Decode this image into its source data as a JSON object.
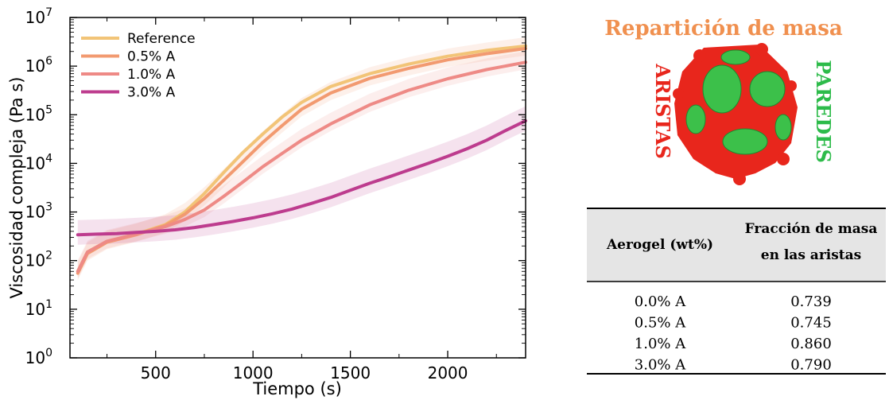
{
  "chart_data": {
    "type": "line",
    "title": "",
    "xlabel": "Tiempo (s)",
    "ylabel": "Viscosidad compleja (Pa s)",
    "xlim": [
      60,
      2400
    ],
    "ylim_log10": [
      0,
      7
    ],
    "y_scale": "log",
    "x_ticks": [
      500,
      1000,
      1500,
      2000
    ],
    "x_tick_labels": [
      "500",
      "1000",
      "1500",
      "2000"
    ],
    "y_tick_exponents": [
      0,
      1,
      2,
      3,
      4,
      5,
      6,
      7
    ],
    "y_tick_base": "10",
    "legend_position": "top-left",
    "series": [
      {
        "name": "Reference",
        "color": "#f2c477",
        "x": [
          100,
          150,
          250,
          400,
          550,
          650,
          750,
          850,
          950,
          1050,
          1150,
          1250,
          1400,
          1600,
          1800,
          2000,
          2200,
          2400
        ],
        "y": [
          60,
          150,
          250,
          350,
          550,
          1000,
          2400,
          6500,
          17000,
          40000,
          90000,
          180000,
          380000,
          700000,
          1100000,
          1600000,
          2100000,
          2600000
        ]
      },
      {
        "name": "0.5% A",
        "color": "#f29a70",
        "x": [
          100,
          150,
          250,
          400,
          550,
          650,
          750,
          850,
          950,
          1050,
          1150,
          1250,
          1400,
          1600,
          1800,
          2000,
          2200,
          2400
        ],
        "y": [
          55,
          140,
          240,
          340,
          530,
          900,
          1900,
          4500,
          11000,
          27000,
          60000,
          130000,
          280000,
          560000,
          900000,
          1350000,
          1800000,
          2300000
        ]
      },
      {
        "name": "1.0% A",
        "color": "#ee8a86",
        "x": [
          100,
          150,
          250,
          400,
          550,
          650,
          750,
          850,
          950,
          1050,
          1150,
          1250,
          1400,
          1600,
          1800,
          2000,
          2200,
          2400
        ],
        "y": [
          60,
          150,
          250,
          350,
          500,
          700,
          1100,
          2100,
          4200,
          8500,
          16000,
          30000,
          65000,
          160000,
          320000,
          550000,
          850000,
          1200000
        ]
      },
      {
        "name": "3.0% A",
        "color": "#bd3c8e",
        "x": [
          100,
          200,
          300,
          400,
          500,
          600,
          700,
          800,
          900,
          1000,
          1100,
          1200,
          1300,
          1400,
          1500,
          1600,
          1700,
          1800,
          1900,
          2000,
          2100,
          2200,
          2300,
          2400
        ],
        "y": [
          340,
          350,
          360,
          380,
          400,
          430,
          480,
          550,
          640,
          760,
          920,
          1150,
          1500,
          2000,
          2800,
          3900,
          5300,
          7300,
          10000,
          14000,
          20000,
          30000,
          48000,
          75000
        ]
      }
    ]
  },
  "right_panel": {
    "title": "Repartición de masa",
    "title_color": "#f0904f",
    "left_label": "ARISTAS",
    "left_label_color": "#e8261c",
    "right_label": "PAREDES",
    "right_label_color": "#2dbb4a",
    "cell_edge_color": "#e8261c",
    "cell_wall_color": "#3cc04a",
    "table": {
      "header": [
        "Aerogel (wt%)",
        "Fracción de masa",
        "en las aristas"
      ],
      "header_bg": "#e5e5e5",
      "rows": [
        [
          "0.0% A",
          "0.739"
        ],
        [
          "0.5% A",
          "0.745"
        ],
        [
          "1.0% A",
          "0.860"
        ],
        [
          "3.0% A",
          "0.790"
        ]
      ]
    }
  }
}
